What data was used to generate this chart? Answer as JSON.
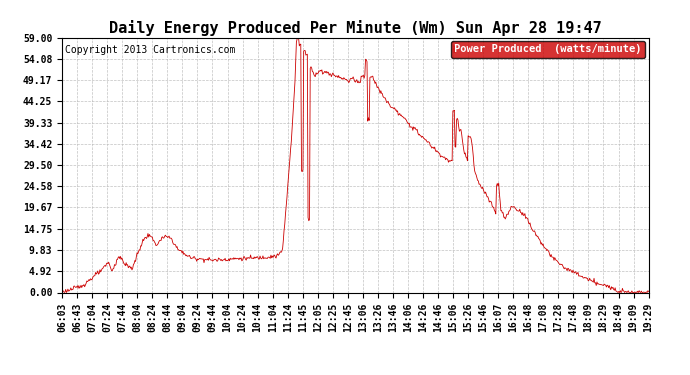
{
  "title": "Daily Energy Produced Per Minute (Wm) Sun Apr 28 19:47",
  "copyright": "Copyright 2013 Cartronics.com",
  "legend_label": "Power Produced  (watts/minute)",
  "legend_bg": "#cc0000",
  "legend_fg": "#ffffff",
  "line_color": "#cc0000",
  "bg_color": "#ffffff",
  "grid_color": "#bbbbbb",
  "yticks": [
    0.0,
    4.92,
    9.83,
    14.75,
    19.67,
    24.58,
    29.5,
    34.42,
    39.33,
    44.25,
    49.17,
    54.08,
    59.0
  ],
  "ymax": 59.0,
  "ymin": 0.0,
  "xtick_labels": [
    "06:03",
    "06:43",
    "07:04",
    "07:24",
    "07:44",
    "08:04",
    "08:24",
    "08:44",
    "09:04",
    "09:24",
    "09:44",
    "10:04",
    "10:24",
    "10:44",
    "11:04",
    "11:24",
    "11:45",
    "12:05",
    "12:25",
    "12:45",
    "13:06",
    "13:26",
    "13:46",
    "14:06",
    "14:26",
    "14:46",
    "15:06",
    "15:26",
    "15:46",
    "16:07",
    "16:28",
    "16:48",
    "17:08",
    "17:28",
    "17:48",
    "18:09",
    "18:29",
    "18:49",
    "19:09",
    "19:29"
  ],
  "title_fontsize": 11,
  "copyright_fontsize": 7,
  "tick_fontsize": 7,
  "legend_fontsize": 7.5
}
